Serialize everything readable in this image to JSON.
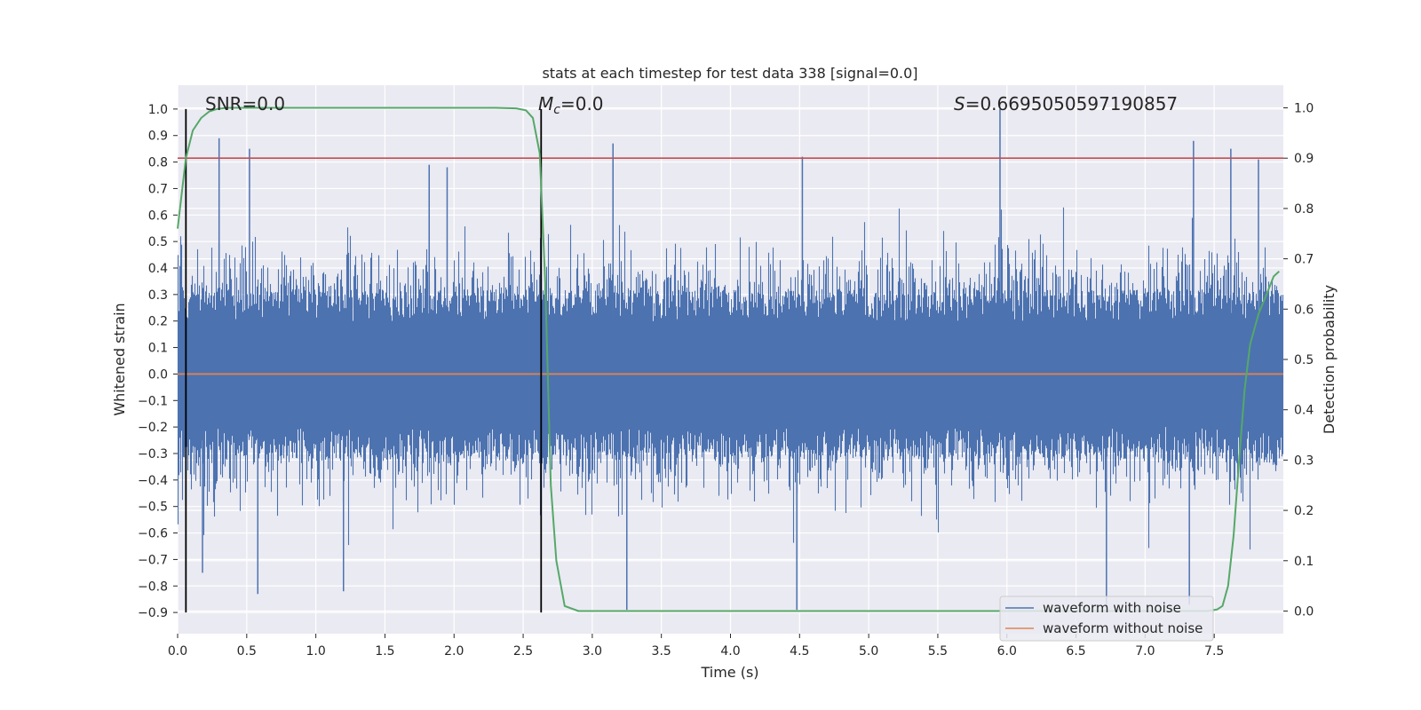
{
  "chart_data": {
    "type": "line",
    "title": "stats at each timestep for test data 338 [signal=0.0]",
    "xlabel": "Time (s)",
    "ylabel_left": "Whitened strain",
    "ylabel_right": "Detection probability",
    "xlim": [
      0.0,
      8.0
    ],
    "ylim_left": [
      -0.98,
      1.09
    ],
    "ylim_right": [
      -0.045,
      1.045
    ],
    "xticks": [
      0.0,
      0.5,
      1.0,
      1.5,
      2.0,
      2.5,
      3.0,
      3.5,
      4.0,
      4.5,
      5.0,
      5.5,
      6.0,
      6.5,
      7.0,
      7.5
    ],
    "xtick_labels": [
      "0.0",
      "0.5",
      "1.0",
      "1.5",
      "2.0",
      "2.5",
      "3.0",
      "3.5",
      "4.0",
      "4.5",
      "5.0",
      "5.5",
      "6.0",
      "6.5",
      "7.0",
      "7.5"
    ],
    "yticks_left": [
      -0.9,
      -0.8,
      -0.7,
      -0.6,
      -0.5,
      -0.4,
      -0.3,
      -0.2,
      -0.1,
      0.0,
      0.1,
      0.2,
      0.3,
      0.4,
      0.5,
      0.6,
      0.7,
      0.8,
      0.9,
      1.0
    ],
    "ytick_labels_left": [
      "−0.9",
      "−0.8",
      "−0.7",
      "−0.6",
      "−0.5",
      "−0.4",
      "−0.3",
      "−0.2",
      "−0.1",
      "0.0",
      "0.1",
      "0.2",
      "0.3",
      "0.4",
      "0.5",
      "0.6",
      "0.7",
      "0.8",
      "0.9",
      "1.0"
    ],
    "yticks_right": [
      0.0,
      0.1,
      0.2,
      0.3,
      0.4,
      0.5,
      0.6,
      0.7,
      0.8,
      0.9,
      1.0
    ],
    "ytick_labels_right": [
      "0.0",
      "0.1",
      "0.2",
      "0.3",
      "0.4",
      "0.5",
      "0.6",
      "0.7",
      "0.8",
      "0.9",
      "1.0"
    ],
    "grid": true,
    "legend_position": "lower-right",
    "legend": [
      {
        "label": "waveform with noise",
        "color": "#4c72b0"
      },
      {
        "label": "waveform without noise",
        "color": "#dd8452"
      }
    ],
    "annotations": {
      "snr": "SNR=0.0",
      "mc_symbol": "M",
      "mc_sub": "c",
      "mc_value": "=0.0",
      "s_symbol": "S",
      "s_value": "=0.6695050597190857"
    },
    "series": [
      {
        "name": "waveform with noise",
        "axis": "left",
        "color": "#4c72b0",
        "sample_rate": 2048,
        "duration": 8.0,
        "amplitude_band": [
          -0.5,
          0.5
        ],
        "spikes": [
          {
            "x": 0.3,
            "y": 0.89
          },
          {
            "x": 0.52,
            "y": 0.85
          },
          {
            "x": 0.58,
            "y": -0.83
          },
          {
            "x": 1.82,
            "y": 0.79
          },
          {
            "x": 1.95,
            "y": 0.78
          },
          {
            "x": 3.15,
            "y": 0.87
          },
          {
            "x": 4.52,
            "y": 0.82
          },
          {
            "x": 5.95,
            "y": 1.0
          },
          {
            "x": 7.35,
            "y": 0.88
          },
          {
            "x": 7.62,
            "y": 0.85
          },
          {
            "x": 7.82,
            "y": 0.81
          },
          {
            "x": 3.25,
            "y": -0.89
          },
          {
            "x": 4.48,
            "y": -0.89
          },
          {
            "x": 6.72,
            "y": -0.88
          },
          {
            "x": 7.32,
            "y": -0.87
          },
          {
            "x": 1.2,
            "y": -0.82
          },
          {
            "x": 0.18,
            "y": -0.75
          }
        ]
      },
      {
        "name": "waveform without noise",
        "axis": "left",
        "color": "#dd8452",
        "x": [
          0.0,
          8.0
        ],
        "y": [
          0.0,
          0.0
        ]
      },
      {
        "name": "detection probability",
        "axis": "right",
        "color": "#55a868",
        "x": [
          0.0,
          0.06,
          0.11,
          0.17,
          0.23,
          0.29,
          0.36,
          0.5,
          1.0,
          1.5,
          2.0,
          2.3,
          2.45,
          2.52,
          2.57,
          2.62,
          2.66,
          2.7,
          2.74,
          2.8,
          2.9,
          3.0,
          4.0,
          5.0,
          6.0,
          7.0,
          7.45,
          7.52,
          7.56,
          7.6,
          7.64,
          7.68,
          7.72,
          7.76,
          7.82,
          7.88,
          7.93,
          7.97
        ],
        "y": [
          0.76,
          0.9,
          0.955,
          0.98,
          0.993,
          0.998,
          1.0,
          1.0,
          1.0,
          1.0,
          1.0,
          1.0,
          0.999,
          0.995,
          0.98,
          0.91,
          0.65,
          0.25,
          0.1,
          0.01,
          0.0,
          0.0,
          0.0,
          0.0,
          0.0,
          0.0,
          0.0,
          0.003,
          0.01,
          0.05,
          0.15,
          0.3,
          0.44,
          0.53,
          0.59,
          0.63,
          0.665,
          0.675
        ]
      },
      {
        "name": "threshold",
        "axis": "right",
        "color": "#c44e52",
        "x": [
          0.0,
          8.0
        ],
        "y": [
          0.9,
          0.9
        ]
      }
    ],
    "vlines": [
      {
        "x": 0.06,
        "color": "#000000",
        "y_left": [
          -0.9,
          1.0
        ]
      },
      {
        "x": 2.63,
        "color": "#000000",
        "y_left": [
          -0.9,
          1.0
        ]
      }
    ]
  }
}
